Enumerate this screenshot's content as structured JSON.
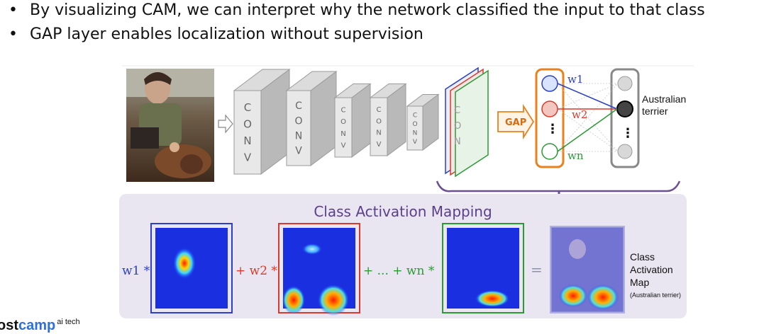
{
  "bullets": [
    "By visualizing CAM, we can interpret why the network classified the input to that class",
    "GAP layer enables localization without supervision"
  ],
  "network": {
    "conv_label": "CONV",
    "gap_label": "GAP",
    "weights": [
      "w1",
      "w2",
      "wn"
    ],
    "output_label_line1": "Australian",
    "output_label_line2": "terrier"
  },
  "cam": {
    "title": "Class Activation Mapping",
    "terms": [
      "w1 *",
      "+ w2 *",
      "+ ... + wn *",
      "="
    ],
    "result_line1": "Class",
    "result_line2": "Activation",
    "result_line3": "Map",
    "result_note": "(Australian terrier)"
  },
  "logo": {
    "part1": "ost",
    "part2": "camp",
    "sup": "ai tech"
  },
  "colors": {
    "blue": "#2b3fc7",
    "red": "#d93a2b",
    "green": "#2a9a32",
    "gap_orange": "#e8821e",
    "cam_panel": "#e9e6f1",
    "cam_title": "#5b3f8c",
    "arrow": "#6b4f93"
  }
}
